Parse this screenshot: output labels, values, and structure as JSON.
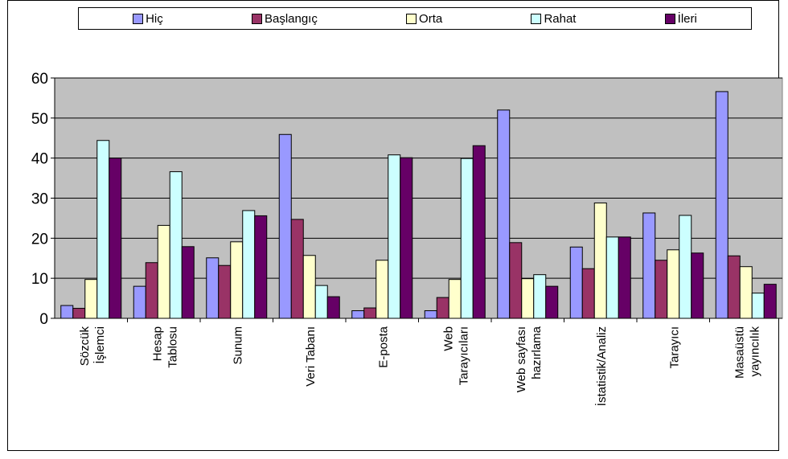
{
  "chart_data": {
    "type": "bar",
    "title": "",
    "xlabel": "",
    "ylabel": "",
    "ylim": [
      0,
      60
    ],
    "yticks": [
      0,
      10,
      20,
      30,
      40,
      50,
      60
    ],
    "grid": true,
    "legend_position": "top",
    "plot_background": "#c0c0c0",
    "categories": [
      [
        "Sözcük",
        "İşlemci"
      ],
      [
        "Hesap",
        "Tablosu"
      ],
      [
        "Sunum"
      ],
      [
        "Veri Tabanı"
      ],
      [
        "E-posta"
      ],
      [
        "Web",
        "Tarayıcıları"
      ],
      [
        "Web sayfası",
        "hazırlama"
      ],
      [
        "İstatistik/Analiz"
      ],
      [
        "Tarayıcı"
      ],
      [
        "Masaüstü",
        "yayıncılık"
      ]
    ],
    "series": [
      {
        "name": "Hiç",
        "color": "#9999ff",
        "values": [
          3.2,
          8.0,
          15.1,
          45.9,
          1.9,
          1.9,
          52.0,
          17.8,
          26.3,
          56.6
        ]
      },
      {
        "name": "Başlangıç",
        "color": "#993366",
        "values": [
          2.5,
          13.9,
          13.2,
          24.7,
          2.6,
          5.2,
          18.9,
          12.4,
          14.5,
          15.6
        ]
      },
      {
        "name": "Orta",
        "color": "#ffffcc",
        "values": [
          9.7,
          23.2,
          19.1,
          15.7,
          14.5,
          9.7,
          9.9,
          28.8,
          17.1,
          12.9
        ]
      },
      {
        "name": "Rahat",
        "color": "#ccffff",
        "values": [
          44.4,
          36.6,
          26.9,
          8.2,
          40.8,
          39.9,
          10.9,
          20.3,
          25.7,
          6.3
        ]
      },
      {
        "name": "İleri",
        "color": "#660066",
        "values": [
          40.0,
          17.9,
          25.6,
          5.4,
          40.1,
          43.1,
          8.0,
          20.3,
          16.3,
          8.5
        ]
      }
    ]
  }
}
